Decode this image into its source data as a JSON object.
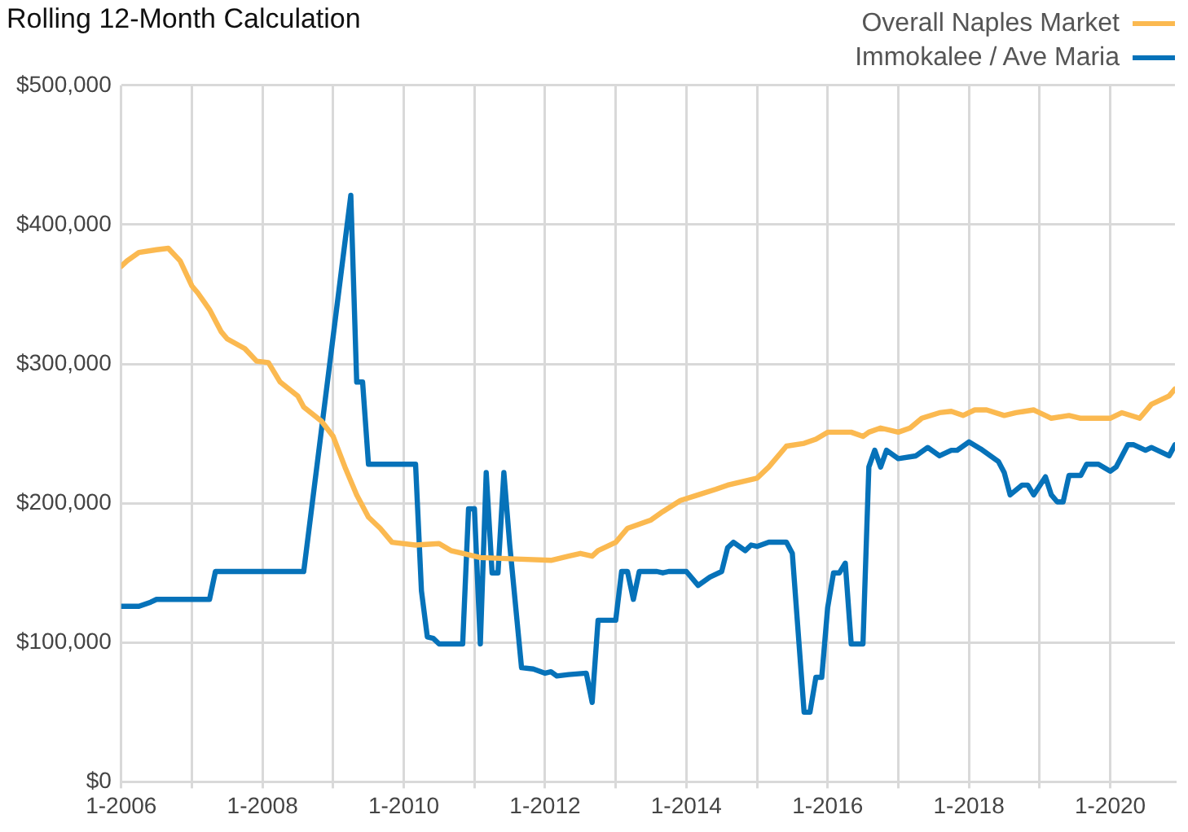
{
  "chart_data": {
    "type": "line",
    "title": "Rolling 12-Month Calculation",
    "legend": "top right",
    "grid": true,
    "marker": "none",
    "line_style": "solid",
    "xlim": [
      "2006-01",
      "2020-12"
    ],
    "xticks": [
      {
        "value": "2006-01",
        "label": "1-2006"
      },
      {
        "value": "2007-01",
        "label": null
      },
      {
        "value": "2008-01",
        "label": "1-2008"
      },
      {
        "value": "2009-01",
        "label": null
      },
      {
        "value": "2010-01",
        "label": "1-2010"
      },
      {
        "value": "2011-01",
        "label": null
      },
      {
        "value": "2012-01",
        "label": "1-2012"
      },
      {
        "value": "2013-01",
        "label": null
      },
      {
        "value": "2014-01",
        "label": "1-2014"
      },
      {
        "value": "2015-01",
        "label": null
      },
      {
        "value": "2016-01",
        "label": "1-2016"
      },
      {
        "value": "2017-01",
        "label": null
      },
      {
        "value": "2018-01",
        "label": "1-2018"
      },
      {
        "value": "2019-01",
        "label": null
      },
      {
        "value": "2020-01",
        "label": "1-2020"
      }
    ],
    "ylim": [
      0,
      500000
    ],
    "yticks": [
      {
        "value": 0,
        "label": "$0"
      },
      {
        "value": 100000,
        "label": "$100,000"
      },
      {
        "value": 200000,
        "label": "$200,000"
      },
      {
        "value": 300000,
        "label": "$300,000"
      },
      {
        "value": 400000,
        "label": "$400,000"
      },
      {
        "value": 500000,
        "label": "$500,000"
      }
    ],
    "series": [
      {
        "name": "Overall Naples Market",
        "color": "#fbb950",
        "x": [
          "2006-01",
          "2006-02",
          "2006-04",
          "2006-07",
          "2006-09",
          "2006-11",
          "2007-01",
          "2007-02",
          "2007-04",
          "2007-06",
          "2007-07",
          "2007-10",
          "2007-12",
          "2008-02",
          "2008-04",
          "2008-07",
          "2008-08",
          "2008-11",
          "2009-01",
          "2009-03",
          "2009-05",
          "2009-07",
          "2009-09",
          "2009-11",
          "2010-03",
          "2010-07",
          "2010-09",
          "2011-01",
          "2011-02",
          "2011-08",
          "2012-02",
          "2012-05",
          "2012-07",
          "2012-09",
          "2012-10",
          "2013-01",
          "2013-03",
          "2013-07",
          "2013-09",
          "2013-12",
          "2014-03",
          "2014-06",
          "2014-08",
          "2015-01",
          "2015-03",
          "2015-06",
          "2015-09",
          "2015-11",
          "2016-01",
          "2016-05",
          "2016-07",
          "2016-08",
          "2016-10",
          "2017-01",
          "2017-03",
          "2017-05",
          "2017-08",
          "2017-10",
          "2017-12",
          "2018-02",
          "2018-04",
          "2018-07",
          "2018-09",
          "2018-12",
          "2019-03",
          "2019-06",
          "2019-08",
          "2020-01",
          "2020-03",
          "2020-06",
          "2020-08",
          "2020-11",
          "2020-12"
        ],
        "values": [
          370000,
          374000,
          380000,
          382000,
          383000,
          374000,
          356000,
          351000,
          339000,
          323000,
          318000,
          311000,
          302000,
          301000,
          287000,
          277000,
          269000,
          259000,
          248000,
          226000,
          206000,
          190000,
          182000,
          172000,
          170000,
          171000,
          166000,
          162000,
          161000,
          160000,
          159000,
          162000,
          164000,
          162000,
          166000,
          172000,
          182000,
          188000,
          194000,
          202000,
          206000,
          210000,
          213000,
          218000,
          226000,
          241000,
          243000,
          246000,
          251000,
          251000,
          248000,
          251000,
          254000,
          251000,
          254000,
          261000,
          265000,
          266000,
          263000,
          267000,
          267000,
          263000,
          265000,
          267000,
          261000,
          263000,
          261000,
          261000,
          265000,
          261000,
          271000,
          277000,
          282000
        ]
      },
      {
        "name": "Immokalee / Ave Maria",
        "color": "#0672b9",
        "x": [
          "2006-01",
          "2006-04",
          "2006-06",
          "2006-07",
          "2007-04",
          "2007-05",
          "2008-08",
          "2009-04",
          "2009-05",
          "2009-06",
          "2009-07",
          "2010-03",
          "2010-04",
          "2010-05",
          "2010-06",
          "2010-07",
          "2010-11",
          "2010-12",
          "2011-01",
          "2011-02",
          "2011-03",
          "2011-04",
          "2011-05",
          "2011-06",
          "2011-07",
          "2011-09",
          "2011-11",
          "2012-01",
          "2012-02",
          "2012-03",
          "2012-05",
          "2012-08",
          "2012-09",
          "2012-10",
          "2013-01",
          "2013-02",
          "2013-03",
          "2013-04",
          "2013-05",
          "2013-08",
          "2013-09",
          "2013-10",
          "2014-01",
          "2014-03",
          "2014-05",
          "2014-07",
          "2014-08",
          "2014-09",
          "2014-11",
          "2014-12",
          "2015-01",
          "2015-03",
          "2015-06",
          "2015-07",
          "2015-09",
          "2015-10",
          "2015-11",
          "2015-12",
          "2016-01",
          "2016-02",
          "2016-03",
          "2016-04",
          "2016-05",
          "2016-07",
          "2016-08",
          "2016-09",
          "2016-10",
          "2016-11",
          "2017-01",
          "2017-04",
          "2017-06",
          "2017-08",
          "2017-10",
          "2017-11",
          "2018-01",
          "2018-03",
          "2018-06",
          "2018-07",
          "2018-08",
          "2018-10",
          "2018-11",
          "2018-12",
          "2019-02",
          "2019-03",
          "2019-04",
          "2019-05",
          "2019-06",
          "2019-08",
          "2019-09",
          "2019-11",
          "2020-01",
          "2020-02",
          "2020-04",
          "2020-05",
          "2020-07",
          "2020-08",
          "2020-11",
          "2020-12"
        ],
        "values": [
          126000,
          126000,
          129000,
          131000,
          131000,
          151000,
          151000,
          421000,
          287000,
          287000,
          228000,
          228000,
          137000,
          104000,
          103000,
          99000,
          99000,
          196000,
          196000,
          99000,
          222000,
          150000,
          150000,
          222000,
          170000,
          82000,
          81000,
          78000,
          79000,
          76000,
          77000,
          78000,
          57000,
          116000,
          116000,
          151000,
          151000,
          131000,
          151000,
          151000,
          150000,
          151000,
          151000,
          141000,
          147000,
          151000,
          168000,
          172000,
          166000,
          170000,
          169000,
          172000,
          172000,
          164000,
          50000,
          50000,
          75000,
          75000,
          125000,
          150000,
          150000,
          157000,
          99000,
          99000,
          226000,
          238000,
          226000,
          238000,
          232000,
          234000,
          240000,
          234000,
          238000,
          238000,
          244000,
          239000,
          230000,
          222000,
          206000,
          213000,
          213000,
          206000,
          219000,
          206000,
          201000,
          201000,
          220000,
          220000,
          228000,
          228000,
          223000,
          226000,
          242000,
          242000,
          238000,
          240000,
          234000,
          242000
        ]
      }
    ]
  }
}
